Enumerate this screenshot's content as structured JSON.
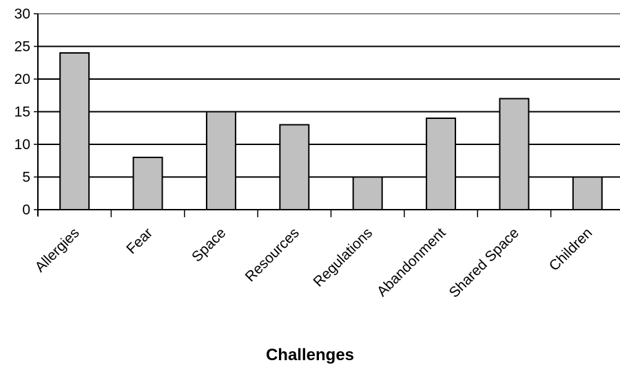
{
  "chart_data": {
    "type": "bar",
    "title": "",
    "xlabel": "Challenges",
    "ylabel": "",
    "categories": [
      "Allergies",
      "Fear",
      "Space",
      "Resources",
      "Regulations",
      "Abandonment",
      "Shared Space",
      "Children"
    ],
    "values": [
      24,
      8,
      15,
      13,
      5,
      14,
      17,
      5
    ],
    "ylim": [
      0,
      30
    ],
    "yticks": [
      "0",
      "5",
      "10",
      "15",
      "20",
      "25",
      "30"
    ],
    "grid": true,
    "legend": "none",
    "bar_color": "#c0c0c0",
    "bar_stroke": "#000000"
  }
}
